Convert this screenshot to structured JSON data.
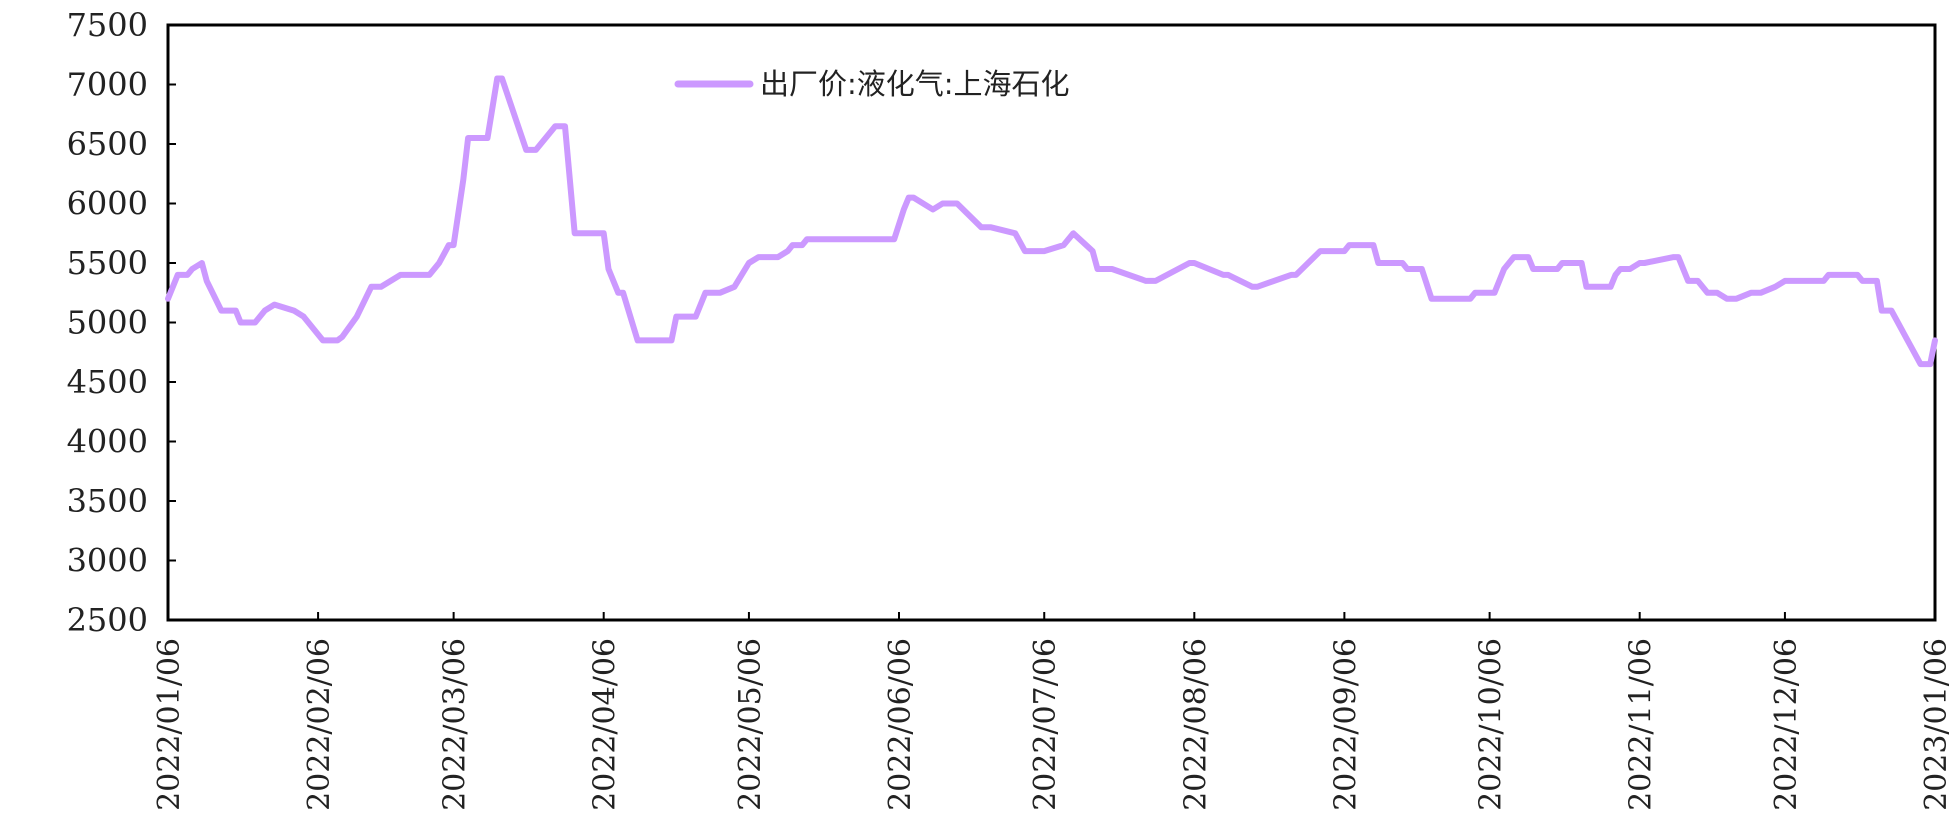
{
  "chart_data": {
    "type": "line",
    "xlabel": "",
    "ylabel": "",
    "ylim": [
      2500,
      7500
    ],
    "yticks": [
      "2500",
      "3000",
      "3500",
      "4000",
      "4500",
      "5000",
      "5500",
      "6000",
      "6500",
      "7000",
      "7500"
    ],
    "xlim": [
      "2022-01-06",
      "2023-01-06"
    ],
    "xticks": [
      "2022/01/06",
      "2022/02/06",
      "2022/03/06",
      "2022/04/06",
      "2022/05/06",
      "2022/06/06",
      "2022/07/06",
      "2022/08/06",
      "2022/09/06",
      "2022/10/06",
      "2022/11/06",
      "2022/12/06",
      "2023/01/06"
    ],
    "grid": false,
    "legend_position": "top-center",
    "colors": {
      "series": "#cc99ff",
      "axis": "#000000"
    },
    "series": [
      {
        "name": "出厂价:液化气:上海石化",
        "x": [
          "2022-01-06",
          "2022-01-08",
          "2022-01-10",
          "2022-01-11",
          "2022-01-13",
          "2022-01-14",
          "2022-01-17",
          "2022-01-20",
          "2022-01-21",
          "2022-01-24",
          "2022-01-26",
          "2022-01-28",
          "2022-02-01",
          "2022-02-03",
          "2022-02-07",
          "2022-02-08",
          "2022-02-10",
          "2022-02-11",
          "2022-02-14",
          "2022-02-17",
          "2022-02-19",
          "2022-02-23",
          "2022-02-26",
          "2022-03-01",
          "2022-03-03",
          "2022-03-05",
          "2022-03-06",
          "2022-03-08",
          "2022-03-09",
          "2022-03-13",
          "2022-03-15",
          "2022-03-16",
          "2022-03-21",
          "2022-03-23",
          "2022-03-27",
          "2022-03-29",
          "2022-03-31",
          "2022-04-06",
          "2022-04-07",
          "2022-04-09",
          "2022-04-10",
          "2022-04-13",
          "2022-04-17",
          "2022-04-20",
          "2022-04-21",
          "2022-04-25",
          "2022-04-27",
          "2022-04-30",
          "2022-05-03",
          "2022-05-06",
          "2022-05-08",
          "2022-05-12",
          "2022-05-14",
          "2022-05-15",
          "2022-05-17",
          "2022-05-18",
          "2022-05-20",
          "2022-05-21",
          "2022-05-31",
          "2022-06-05",
          "2022-06-07",
          "2022-06-08",
          "2022-06-09",
          "2022-06-13",
          "2022-06-15",
          "2022-06-16",
          "2022-06-18",
          "2022-06-23",
          "2022-06-25",
          "2022-06-30",
          "2022-07-02",
          "2022-07-06",
          "2022-07-10",
          "2022-07-12",
          "2022-07-16",
          "2022-07-17",
          "2022-07-20",
          "2022-07-27",
          "2022-07-29",
          "2022-08-05",
          "2022-08-06",
          "2022-08-12",
          "2022-08-13",
          "2022-08-18",
          "2022-08-19",
          "2022-08-26",
          "2022-08-27",
          "2022-09-01",
          "2022-09-06",
          "2022-09-07",
          "2022-09-12",
          "2022-09-13",
          "2022-09-18",
          "2022-09-19",
          "2022-09-22",
          "2022-09-24",
          "2022-10-02",
          "2022-10-03",
          "2022-10-07",
          "2022-10-09",
          "2022-10-11",
          "2022-10-14",
          "2022-10-15",
          "2022-10-20",
          "2022-10-21",
          "2022-10-25",
          "2022-10-26",
          "2022-10-31",
          "2022-11-01",
          "2022-11-02",
          "2022-11-04",
          "2022-11-06",
          "2022-11-07",
          "2022-11-13",
          "2022-11-14",
          "2022-11-16",
          "2022-11-18",
          "2022-11-20",
          "2022-11-22",
          "2022-11-24",
          "2022-11-26",
          "2022-11-29",
          "2022-12-01",
          "2022-12-04",
          "2022-12-06",
          "2022-12-14",
          "2022-12-15",
          "2022-12-21",
          "2022-12-22",
          "2022-12-25",
          "2022-12-26",
          "2022-12-28",
          "2023-01-03",
          "2023-01-05",
          "2023-01-06"
        ],
        "values": [
          5200,
          5400,
          5400,
          5450,
          5500,
          5350,
          5100,
          5100,
          5000,
          5000,
          5100,
          5150,
          5100,
          5050,
          4850,
          4850,
          4850,
          4880,
          5050,
          5300,
          5300,
          5400,
          5400,
          5400,
          5500,
          5650,
          5650,
          6200,
          6550,
          6550,
          7050,
          7050,
          6450,
          6450,
          6650,
          6650,
          5750,
          5750,
          5450,
          5250,
          5250,
          4850,
          4850,
          4850,
          5050,
          5050,
          5250,
          5250,
          5300,
          5500,
          5550,
          5550,
          5600,
          5650,
          5650,
          5700,
          5700,
          5700,
          5700,
          5700,
          5950,
          6050,
          6050,
          5950,
          6000,
          6000,
          6000,
          5800,
          5800,
          5750,
          5600,
          5600,
          5650,
          5750,
          5600,
          5450,
          5450,
          5350,
          5350,
          5500,
          5500,
          5400,
          5400,
          5300,
          5300,
          5400,
          5400,
          5600,
          5600,
          5650,
          5650,
          5500,
          5500,
          5450,
          5450,
          5200,
          5200,
          5250,
          5250,
          5450,
          5550,
          5550,
          5450,
          5450,
          5500,
          5500,
          5300,
          5300,
          5400,
          5450,
          5450,
          5500,
          5500,
          5550,
          5550,
          5350,
          5350,
          5250,
          5250,
          5200,
          5200,
          5250,
          5250,
          5300,
          5350,
          5350,
          5400,
          5400,
          5350,
          5350,
          5100,
          5100,
          4650,
          4650,
          4850
        ]
      }
    ]
  }
}
